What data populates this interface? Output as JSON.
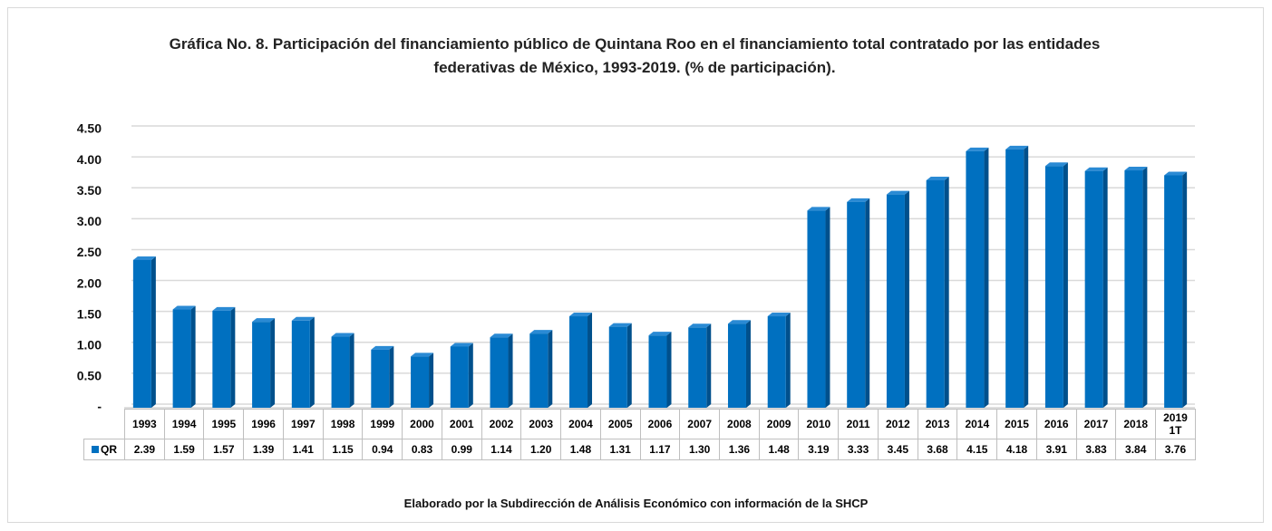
{
  "chart_data": {
    "type": "bar",
    "title": "Gráfica No. 8. Participación del financiamiento público de Quintana Roo en el financiamiento total contratado por las entidades federativas de México, 1993-2019. (% de participación).",
    "categories": [
      "1993",
      "1994",
      "1995",
      "1996",
      "1997",
      "1998",
      "1999",
      "2000",
      "2001",
      "2002",
      "2003",
      "2004",
      "2005",
      "2006",
      "2007",
      "2008",
      "2009",
      "2010",
      "2011",
      "2012",
      "2013",
      "2014",
      "2015",
      "2016",
      "2017",
      "2018",
      "2019 1T"
    ],
    "series": [
      {
        "name": "QR",
        "color": "#0070c0",
        "values": [
          2.39,
          1.59,
          1.57,
          1.39,
          1.41,
          1.15,
          0.94,
          0.83,
          0.99,
          1.14,
          1.2,
          1.48,
          1.31,
          1.17,
          1.3,
          1.36,
          1.48,
          3.19,
          3.33,
          3.45,
          3.68,
          4.15,
          4.18,
          3.91,
          3.83,
          3.84,
          3.76
        ],
        "value_labels": [
          "2.39",
          "1.59",
          "1.57",
          "1.39",
          "1.41",
          "1.15",
          "0.94",
          "0.83",
          "0.99",
          "1.14",
          "1.20",
          "1.48",
          "1.31",
          "1.17",
          "1.30",
          "1.36",
          "1.48",
          "3.19",
          "3.33",
          "3.45",
          "3.68",
          "4.15",
          "4.18",
          "3.91",
          "3.83",
          "3.84",
          "3.76"
        ]
      }
    ],
    "ylim": [
      0,
      4.5
    ],
    "yticks": [
      {
        "value": 0,
        "label": "-"
      },
      {
        "value": 0.5,
        "label": "0.50"
      },
      {
        "value": 1,
        "label": "1.00"
      },
      {
        "value": 1.5,
        "label": "1.50"
      },
      {
        "value": 2,
        "label": "2.00"
      },
      {
        "value": 2.5,
        "label": "2.50"
      },
      {
        "value": 3,
        "label": "3.00"
      },
      {
        "value": 3.5,
        "label": "3.50"
      },
      {
        "value": 4,
        "label": "4.00"
      },
      {
        "value": 4.5,
        "label": "4.50"
      }
    ],
    "grid": true,
    "note": "Elaborado por la Subdirección de Análisis Económico con información de la SHCP"
  }
}
